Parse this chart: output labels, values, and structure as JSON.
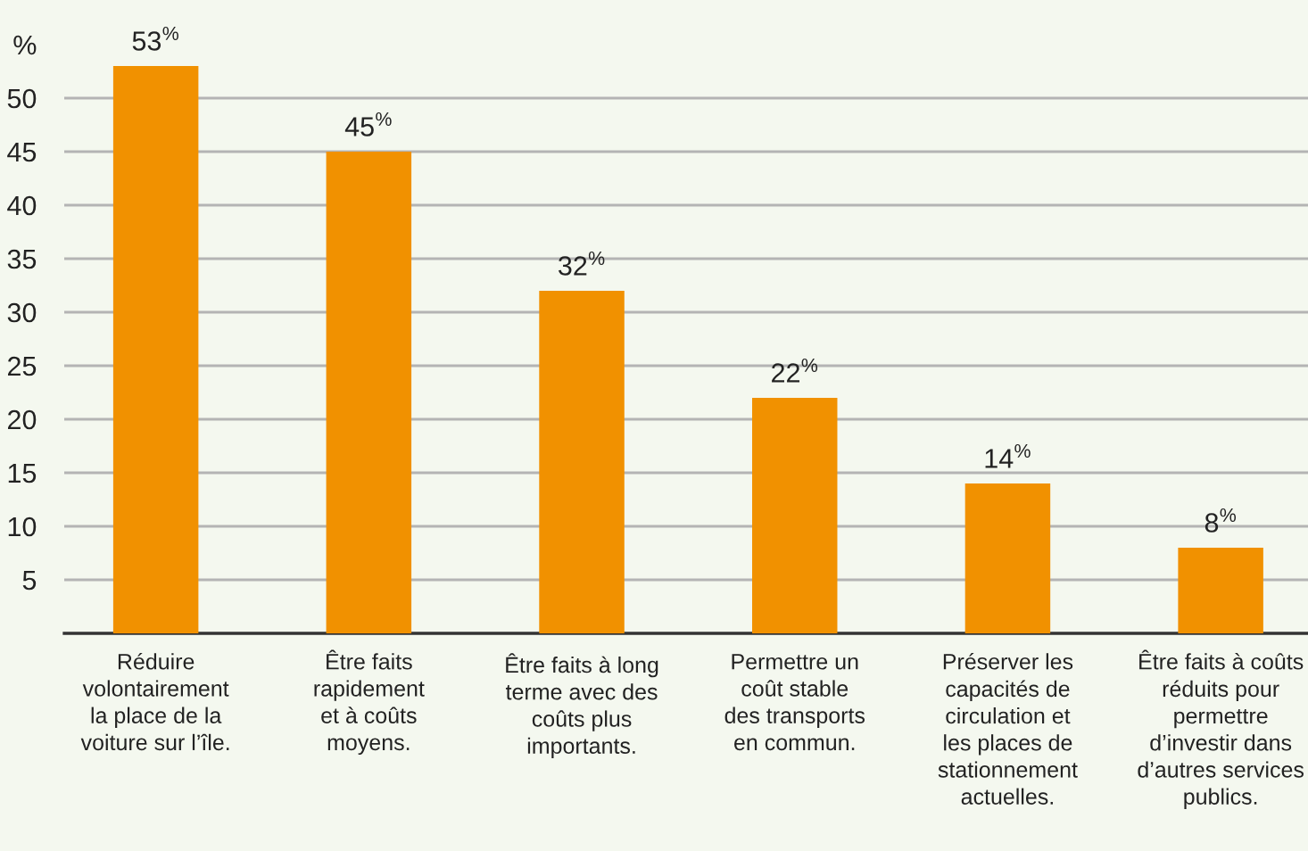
{
  "chart_data": {
    "type": "bar",
    "categories": [
      "Réduire\nvolontairement\nla place de la\nvoiture sur l’île.",
      "Être faits\nrapidement\net à coûts\nmoyens.",
      "Être faits à long\nterme avec des\ncoûts plus\nimportants.",
      "Permettre un\ncoût stable\ndes transports\nen commun.",
      "Préserver les\ncapacités de\ncirculation et\nles places de\nstationnement\nactuelles.",
      "Être faits à coûts\nréduits pour\npermettre\nd’investir dans\nd’autres services\npublics."
    ],
    "values": [
      53,
      45,
      32,
      22,
      14,
      8
    ],
    "color": "#f19100",
    "value_labels": [
      "53$^{%}$",
      "45$^{%}$",
      "32$^{%}$",
      "22$^{%}$",
      "14$^{%}$",
      "8$^{%}$"
    ],
    "ylim": [
      0,
      55
    ],
    "yticks": [
      5,
      10,
      15,
      20,
      25,
      30,
      35,
      40,
      45,
      50,
      {
        "value": 55,
        "label": "%"
      }
    ],
    "grid": "y",
    "legend": false
  }
}
